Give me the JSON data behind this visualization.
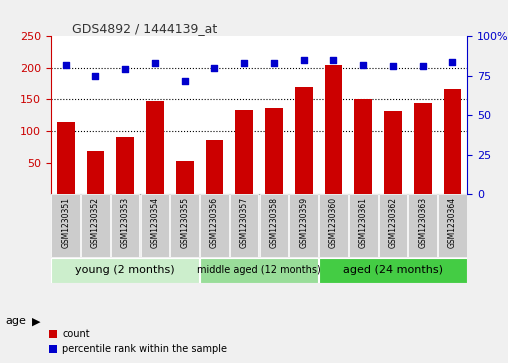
{
  "title": "GDS4892 / 1444139_at",
  "samples": [
    "GSM1230351",
    "GSM1230352",
    "GSM1230353",
    "GSM1230354",
    "GSM1230355",
    "GSM1230356",
    "GSM1230357",
    "GSM1230358",
    "GSM1230359",
    "GSM1230360",
    "GSM1230361",
    "GSM1230362",
    "GSM1230363",
    "GSM1230364"
  ],
  "counts": [
    115,
    68,
    90,
    148,
    52,
    86,
    133,
    136,
    169,
    204,
    150,
    131,
    145,
    166
  ],
  "percentiles": [
    82,
    75,
    79,
    83,
    72,
    80,
    83,
    83,
    85,
    85,
    82,
    81,
    81,
    84
  ],
  "ylim_left": [
    0,
    250
  ],
  "ylim_right": [
    0,
    100
  ],
  "yticks_left": [
    50,
    100,
    150,
    200,
    250
  ],
  "yticks_right": [
    0,
    25,
    50,
    75,
    100
  ],
  "bar_color": "#cc0000",
  "dot_color": "#0000cc",
  "group_labels": [
    "young (2 months)",
    "middle aged (12 months)",
    "aged (24 months)"
  ],
  "group_ranges": [
    [
      0,
      4
    ],
    [
      5,
      8
    ],
    [
      9,
      13
    ]
  ],
  "group_colors": [
    "#cceecc",
    "#99dd99",
    "#44cc44"
  ],
  "age_label": "age",
  "legend_count": "count",
  "legend_percentile": "percentile rank within the sample",
  "title_color": "#333333",
  "left_axis_color": "#cc0000",
  "right_axis_color": "#0000cc",
  "bg_color": "#f0f0f0",
  "sample_box_color": "#cccccc",
  "plot_bg": "#ffffff",
  "hline_values": [
    100,
    150,
    200
  ]
}
